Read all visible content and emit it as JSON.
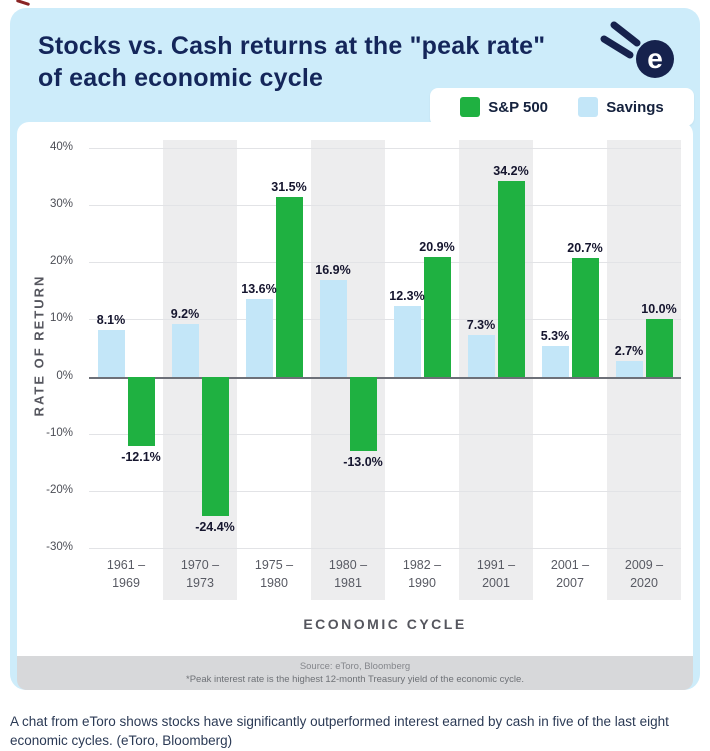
{
  "header": {
    "title_line1": "Stocks vs. Cash returns at the \"peak rate\"",
    "title_line2": "of each economic cycle"
  },
  "logo": {
    "letter": "e"
  },
  "legend": {
    "items": [
      {
        "label": "S&P 500",
        "color": "#1fb141"
      },
      {
        "label": "Savings",
        "color": "#c3e6f8"
      }
    ]
  },
  "footer": {
    "source": "Source: eToro, Bloomberg",
    "note": "*Peak interest rate is the highest 12-month Treasury yield of the economic cycle."
  },
  "caption": "A chat from eToro shows stocks have significantly outperformed interest earned by cash in five of the last eight economic cycles. (eToro, Bloomberg)",
  "colors": {
    "card_bg": "#cdecfa",
    "title_navy": "#14265a",
    "brand_navy": "#16224d",
    "stripe": "#ededee",
    "footer_band": "#d7d8da",
    "caption": "#2b3a55"
  },
  "chart_data": {
    "type": "bar",
    "title": "Stocks vs. Cash returns at the \"peak rate\" of each economic cycle",
    "categories": [
      "1961 – 1969",
      "1970 – 1973",
      "1975 – 1980",
      "1980 – 1981",
      "1982 – 1990",
      "1991 – 2001",
      "2001 – 2007",
      "2009 – 2020"
    ],
    "series": [
      {
        "name": "Savings",
        "color": "#c3e6f8",
        "values": [
          8.1,
          9.2,
          13.6,
          16.9,
          12.3,
          7.3,
          5.3,
          2.7
        ],
        "labels": [
          "8.1%",
          "9.2%",
          "13.6%",
          "16.9%",
          "12.3%",
          "7.3%",
          "5.3%",
          "2.7%"
        ]
      },
      {
        "name": "S&P 500",
        "color": "#1fb141",
        "values": [
          -12.1,
          -24.4,
          31.5,
          -13.0,
          20.9,
          34.2,
          20.7,
          10.0
        ],
        "labels": [
          "-12.1%",
          "-24.4%",
          "31.5%",
          "-13.0%",
          "20.9%",
          "34.2%",
          "20.7%",
          "10.0%"
        ]
      }
    ],
    "xlabel": "ECONOMIC CYCLE",
    "ylabel": "RATE OF RETURN",
    "ylim": [
      -30,
      40
    ],
    "ytick_step": 10,
    "ytick_labels": [
      "40%",
      "30%",
      "20%",
      "10%",
      "0%",
      "-10%",
      "-20%",
      "-30%"
    ],
    "grid": true,
    "legend_position": "top-right",
    "striped_columns": [
      1,
      3,
      5,
      7
    ]
  }
}
